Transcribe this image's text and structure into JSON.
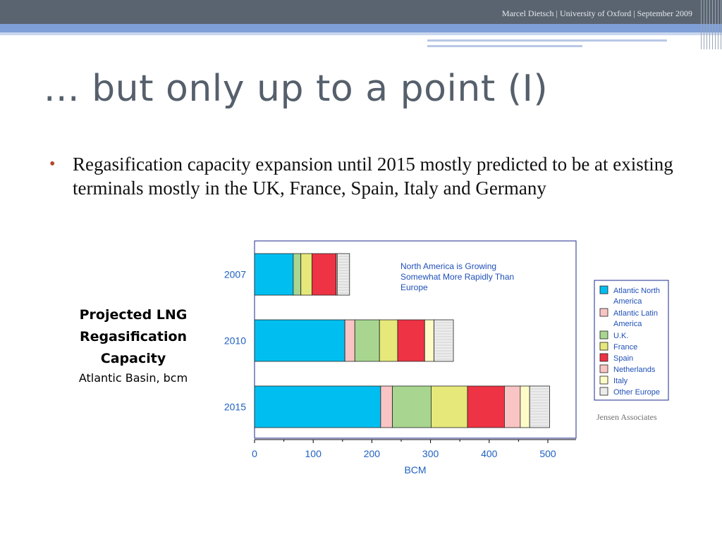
{
  "header": {
    "credit": "Marcel Dietsch | University of Oxford | September 2009"
  },
  "slide": {
    "title": "... but only up to a point (I)",
    "bullet": "Regasification capacity expansion until 2015 mostly predicted to be at existing terminals mostly in the UK, France, Spain, Italy and Germany"
  },
  "side_caption": {
    "line1": "Projected LNG",
    "line2": "Regasification",
    "line3": "Capacity",
    "line4": "Atlantic Basin, bcm"
  },
  "source": "Jensen Associates",
  "colors": {
    "bar_outline": "#222222",
    "axis_text": "#2060c0",
    "frame": "#1c2a8c"
  },
  "chart_data": {
    "type": "bar",
    "orientation": "horizontal",
    "stacked": true,
    "categories": [
      "2007",
      "2010",
      "2015"
    ],
    "series": [
      {
        "name": "Atlantic North America",
        "color": "#00bff0",
        "values": [
          66,
          154,
          215
        ]
      },
      {
        "name": "Atlantic Latin America",
        "color": "#f9c4c4",
        "values": [
          0,
          17,
          20
        ]
      },
      {
        "name": "U.K.",
        "color": "#a8d690",
        "values": [
          13,
          42,
          66
        ]
      },
      {
        "name": "France",
        "color": "#e6e87a",
        "values": [
          19,
          31,
          62
        ]
      },
      {
        "name": "Spain",
        "color": "#ee3344",
        "values": [
          41,
          46,
          63
        ]
      },
      {
        "name": "Netherlands",
        "color": "#f9c4c4",
        "values": [
          2,
          0,
          27
        ]
      },
      {
        "name": "Italy",
        "color": "#fdfcc8",
        "values": [
          0,
          16,
          16
        ]
      },
      {
        "name": "Other Europe",
        "color": "#ececec",
        "values": [
          21,
          33,
          34
        ]
      }
    ],
    "xlabel": "BCM",
    "xlim": [
      0,
      550
    ],
    "xticks": [
      0,
      100,
      200,
      300,
      400,
      500
    ],
    "annotation": "North America is Growing Somewhat More Rapidly Than Europe",
    "legend_position": "right",
    "grid": false
  }
}
